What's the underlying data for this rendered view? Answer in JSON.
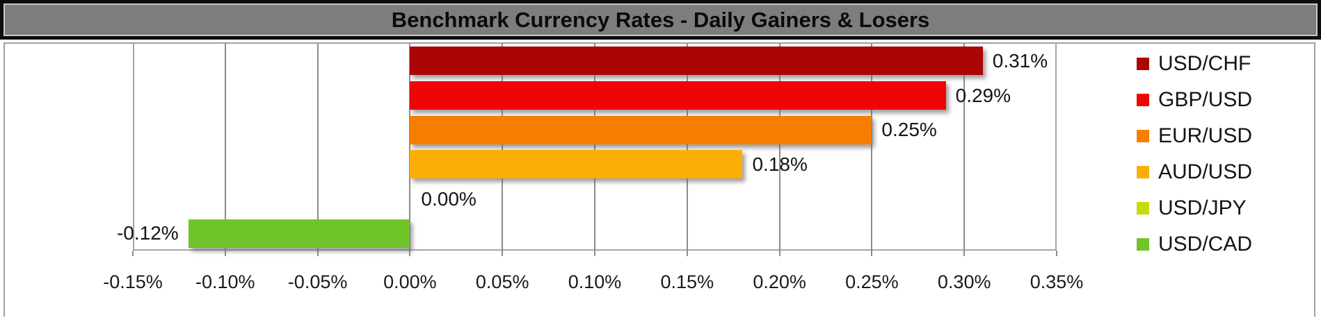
{
  "title": "Benchmark Currency Rates - Daily Gainers & Losers",
  "chart_data": {
    "type": "bar",
    "orientation": "horizontal",
    "title": "Benchmark Currency Rates - Daily Gainers & Losers",
    "categories": [
      "USD/CHF",
      "GBP/USD",
      "EUR/USD",
      "AUD/USD",
      "USD/JPY",
      "USD/CAD"
    ],
    "series": [
      {
        "name": "USD/CHF",
        "value": 0.31,
        "label": "0.31%",
        "color": "#AA0606"
      },
      {
        "name": "GBP/USD",
        "value": 0.29,
        "label": "0.29%",
        "color": "#EE0505"
      },
      {
        "name": "EUR/USD",
        "value": 0.25,
        "label": "0.25%",
        "color": "#F67E02"
      },
      {
        "name": "AUD/USD",
        "value": 0.18,
        "label": "0.18%",
        "color": "#FBAE04"
      },
      {
        "name": "USD/JPY",
        "value": 0.0,
        "label": "0.00%",
        "color": "#C9DB05"
      },
      {
        "name": "USD/CAD",
        "value": -0.12,
        "label": "-0.12%",
        "color": "#6FC42A"
      }
    ],
    "value_axis": {
      "min": -0.15,
      "max": 0.35,
      "step": 0.05,
      "tick_labels": [
        "-0.15%",
        "-0.10%",
        "-0.05%",
        "0.00%",
        "0.05%",
        "0.10%",
        "0.15%",
        "0.20%",
        "0.25%",
        "0.30%",
        "0.35%"
      ]
    },
    "grid": true,
    "legend_position": "right",
    "legend": [
      "USD/CHF",
      "GBP/USD",
      "EUR/USD",
      "AUD/USD",
      "USD/JPY",
      "USD/CAD"
    ]
  },
  "style_colors": {
    "title_bar_bg": "#7D7D7D",
    "title_border": "#0D0D0D",
    "gridline": "#8C8C8C"
  }
}
